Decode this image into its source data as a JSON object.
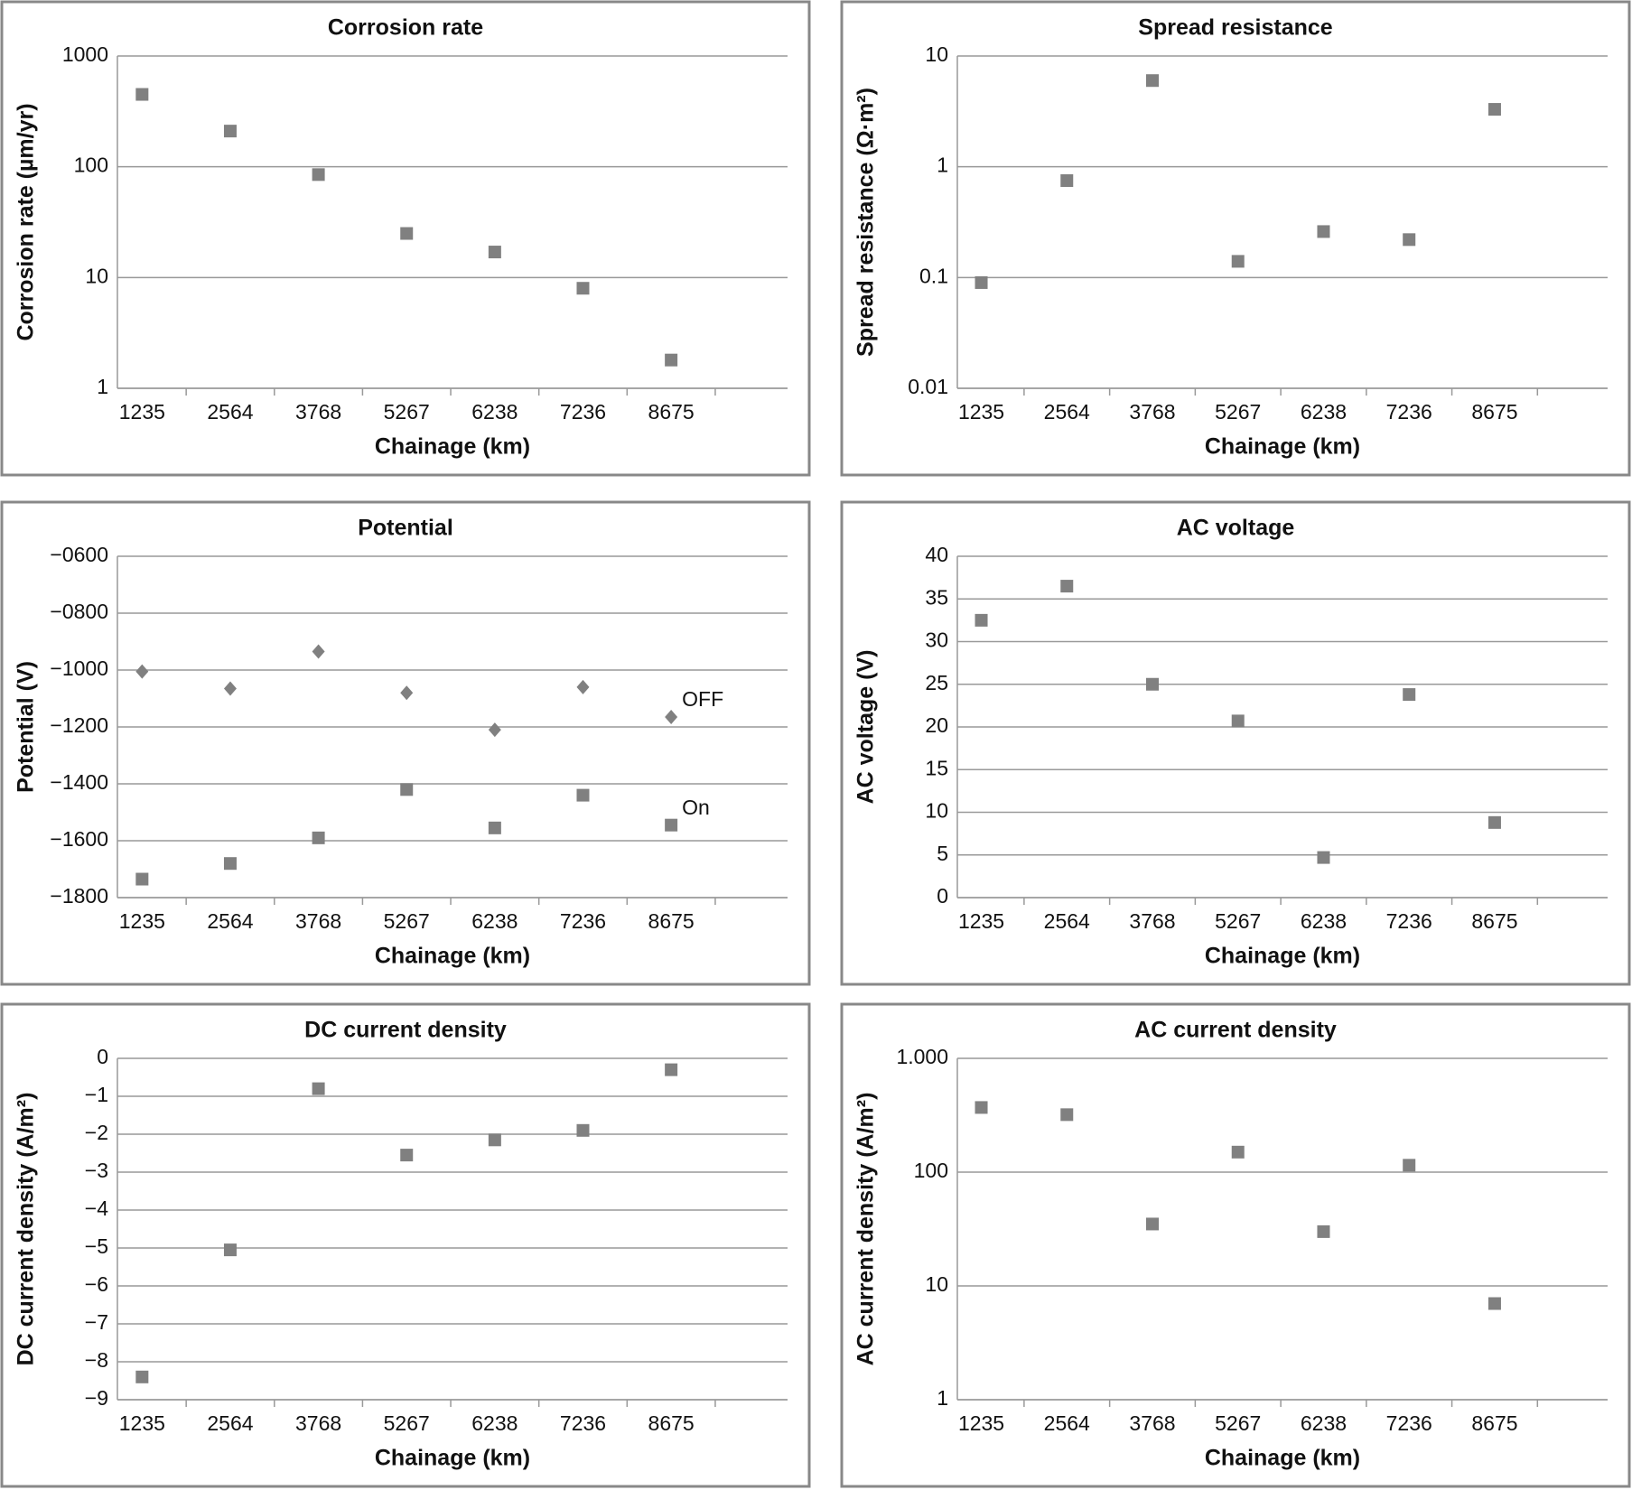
{
  "chart_data": [
    {
      "type": "scatter",
      "title": "Corrosion rate",
      "x_label": "Chainage (km)",
      "y_label": "Corrosion rate (µm/yr)",
      "categories": [
        "1235",
        "2564",
        "3768",
        "5267",
        "6238",
        "7236",
        "8675"
      ],
      "values": [
        450,
        210,
        85,
        25,
        17,
        8,
        1.8
      ],
      "color": "#808080",
      "marker": "square",
      "log_scale": true,
      "ylim": [
        1,
        1000
      ],
      "yticks": [
        1,
        10,
        100,
        1000
      ],
      "grid": true
    },
    {
      "type": "scatter",
      "title": "Spread resistance",
      "x_label": "Chainage (km)",
      "y_label": "Spread resistance (Ω·m²)",
      "categories": [
        "1235",
        "2564",
        "3768",
        "5267",
        "6238",
        "7236",
        "8675"
      ],
      "values": [
        0.09,
        0.75,
        6,
        0.14,
        0.26,
        0.22,
        3.3
      ],
      "color": "#808080",
      "marker": "square",
      "log_scale": true,
      "ylim": [
        0.01,
        10
      ],
      "yticks": [
        0.01,
        0.1,
        1,
        10
      ],
      "grid": true
    },
    {
      "type": "scatter",
      "title": "Potential",
      "x_label": "Chainage (km)",
      "y_label": "Potential (V)",
      "categories": [
        "1235",
        "2564",
        "3768",
        "5267",
        "6238",
        "7236",
        "8675"
      ],
      "series": [
        {
          "name": "OFF",
          "color": "#808080",
          "marker": "diamond",
          "values": [
            -1005,
            -1065,
            -935,
            -1080,
            -1210,
            -1060,
            -1165
          ]
        },
        {
          "name": "On",
          "color": "#808080",
          "marker": "square",
          "values": [
            -1735,
            -1680,
            -1590,
            -1420,
            -1555,
            -1440,
            -1545
          ]
        }
      ],
      "log_scale": false,
      "ylim": [
        -1800,
        -600
      ],
      "yticks": [
        {
          "value": -1800,
          "label": "−1800"
        },
        {
          "value": -1600,
          "label": "−1600"
        },
        {
          "value": -1400,
          "label": "−1400"
        },
        {
          "value": -1200,
          "label": "−1200"
        },
        {
          "value": -1000,
          "label": "−1000"
        },
        {
          "value": -800,
          "label": "−0800"
        },
        {
          "value": -600,
          "label": "−0600"
        }
      ],
      "grid": true
    },
    {
      "type": "scatter",
      "title": "AC voltage",
      "x_label": "Chainage (km)",
      "y_label": "AC voltage (V)",
      "categories": [
        "1235",
        "2564",
        "3768",
        "5267",
        "6238",
        "7236",
        "8675"
      ],
      "values": [
        32.5,
        36.5,
        25,
        20.7,
        4.7,
        23.8,
        8.8
      ],
      "color": "#808080",
      "marker": "square",
      "log_scale": false,
      "ylim": [
        0,
        40
      ],
      "yticks": [
        0,
        5,
        10,
        15,
        20,
        25,
        30,
        35,
        40
      ],
      "grid": true
    },
    {
      "type": "scatter",
      "title": "DC current density",
      "x_label": "Chainage (km)",
      "y_label": "DC current density (A/m²)",
      "categories": [
        "1235",
        "2564",
        "3768",
        "5267",
        "6238",
        "7236",
        "8675"
      ],
      "values": [
        -8.4,
        -5.05,
        -0.8,
        -2.55,
        -2.15,
        -1.9,
        -0.3
      ],
      "color": "#808080",
      "marker": "square",
      "log_scale": false,
      "ylim": [
        -9,
        0
      ],
      "yticks": [
        {
          "value": -9,
          "label": "−9"
        },
        {
          "value": -8,
          "label": "−8"
        },
        {
          "value": -7,
          "label": "−7"
        },
        {
          "value": -6,
          "label": "−6"
        },
        {
          "value": -5,
          "label": "−5"
        },
        {
          "value": -4,
          "label": "−4"
        },
        {
          "value": -3,
          "label": "−3"
        },
        {
          "value": -2,
          "label": "−2"
        },
        {
          "value": -1,
          "label": "−1"
        },
        0
      ],
      "grid": true
    },
    {
      "type": "scatter",
      "title": "AC current density",
      "x_label": "Chainage (km)",
      "y_label": "AC current density (A/m²)",
      "categories": [
        "1235",
        "2564",
        "3768",
        "5267",
        "6238",
        "7236",
        "8675"
      ],
      "values": [
        370,
        320,
        35,
        150,
        30,
        115,
        7
      ],
      "color": "#808080",
      "marker": "square",
      "log_scale": true,
      "ylim": [
        1,
        1000
      ],
      "yticks": [
        1,
        10,
        100,
        {
          "value": 1000,
          "label": "1.000"
        }
      ],
      "grid": true
    }
  ]
}
